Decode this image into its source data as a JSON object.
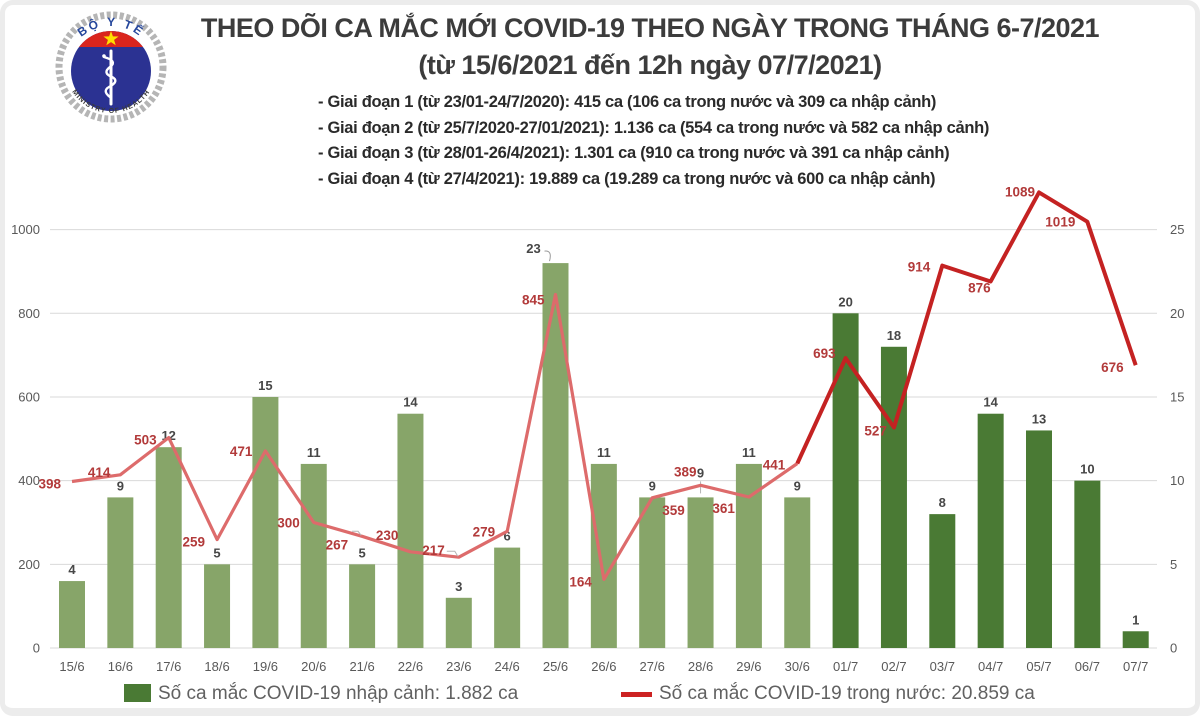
{
  "logo": {
    "top_text": "BỘ Y TẾ",
    "bottom_text": "MINISTRY OF HEALTH"
  },
  "header": {
    "title_line1": "THEO DÕI CA MẮC MỚI COVID-19 THEO NGÀY TRONG THÁNG 6-7/2021",
    "title_line2": "(từ 15/6/2021 đến 12h ngày 07/7/2021)",
    "bullets": [
      "- Giai đoạn 1 (từ 23/01-24/7/2020): 415 ca (106 ca trong nước và 309 ca nhập cảnh)",
      "- Giai đoạn 2 (từ 25/7/2020-27/01/2021): 1.136 ca (554 ca trong nước và 582 ca nhập cảnh)",
      "- Giai đoạn 3 (từ 28/01-26/4/2021): 1.301 ca (910 ca trong nước và 391 ca nhập cảnh)",
      "- Giai đoạn 4 (từ 27/4/2021): 19.889 ca (19.289 ca trong nước và 600 ca nhập cảnh)"
    ]
  },
  "chart_data": {
    "type": "combo",
    "title": "THEO DÕI CA MẮC MỚI COVID-19 THEO NGÀY TRONG THÁNG 6-7/2021 (từ 15/6/2021 đến 12h ngày 07/7/2021)",
    "categories": [
      "15/6",
      "16/6",
      "17/6",
      "18/6",
      "19/6",
      "20/6",
      "21/6",
      "22/6",
      "23/6",
      "24/6",
      "25/6",
      "26/6",
      "27/6",
      "28/6",
      "29/6",
      "30/6",
      "01/7",
      "02/7",
      "03/7",
      "04/7",
      "05/7",
      "06/7",
      "07/7"
    ],
    "series": [
      {
        "name": "Số ca mắc COVID-19 nhập cảnh",
        "type": "bar",
        "axis": "right",
        "values": [
          4,
          9,
          12,
          5,
          15,
          11,
          5,
          14,
          3,
          6,
          23,
          11,
          9,
          9,
          11,
          9,
          20,
          18,
          8,
          14,
          13,
          10,
          1
        ],
        "color_june": "#87a569",
        "color_july": "#4a7a34",
        "july_start_index": 16
      },
      {
        "name": "Số ca mắc COVID-19 trong nước",
        "type": "line",
        "axis": "left",
        "values": [
          398,
          414,
          503,
          259,
          471,
          300,
          267,
          230,
          217,
          279,
          845,
          164,
          359,
          389,
          361,
          441,
          693,
          527,
          914,
          876,
          1089,
          1019,
          676
        ],
        "color_june": "#dd6b6b",
        "color_july": "#c42222",
        "july_start_index": 15
      }
    ],
    "left_axis": {
      "ticks": [
        0,
        200,
        400,
        600,
        800,
        1000
      ]
    },
    "right_axis": {
      "ticks": [
        0,
        5,
        10,
        15,
        20,
        25
      ]
    },
    "grid": true,
    "legend_position": "bottom",
    "label_color_line": "#b23a3a",
    "label_color_bar": "#474747",
    "grid_color": "#d9d9d9"
  },
  "legend": {
    "bar_label": "Số ca mắc COVID-19 nhập cảnh: 1.882 ca",
    "line_label": "Số ca mắc COVID-19 trong nước: 20.859 ca",
    "bar_color": "#4a7a34",
    "line_color": "#cc2222"
  }
}
